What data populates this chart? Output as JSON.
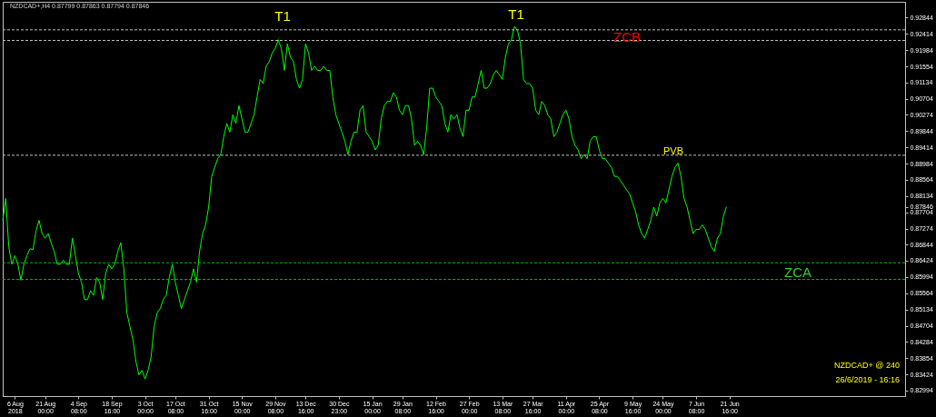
{
  "chart_data": {
    "type": "line",
    "title": "NZDCAD+,H4  0.87799 0.87863 0.87794 0.87846",
    "categories": [
      null,
      null,
      null,
      null,
      "6 Aug 2018",
      null,
      null,
      null,
      null,
      null,
      null,
      null,
      null,
      null,
      "21 Aug 00:00",
      null,
      null,
      null,
      null,
      null,
      null,
      null,
      null,
      null,
      null,
      "4 Sep 08:00",
      null,
      null,
      null,
      null,
      null,
      null,
      null,
      null,
      null,
      null,
      "18 Sep 16:00",
      null,
      null,
      null,
      null,
      null,
      null,
      null,
      null,
      null,
      null,
      "3 Oct 00:00",
      null,
      null,
      null,
      null,
      null,
      null,
      null,
      null,
      null,
      "17 Oct 08:00",
      null,
      null,
      null,
      null,
      null,
      null,
      null,
      null,
      null,
      null,
      "31 Oct 16:00",
      null,
      null,
      null,
      null,
      null,
      null,
      null,
      null,
      null,
      null,
      "15 Nov 00:00",
      null,
      null,
      null,
      null,
      null,
      null,
      null,
      null,
      null,
      null,
      "29 Nov 08:00",
      null,
      null,
      null,
      null,
      null,
      null,
      null,
      null,
      null,
      "13 Dec 16:00",
      null,
      null,
      null,
      null,
      null,
      null,
      null,
      null,
      null,
      null,
      "30 Dec 23:00",
      null,
      null,
      null,
      null,
      null,
      null,
      null,
      null,
      null,
      null,
      "15 Jan 00:00",
      null,
      null,
      null,
      null,
      null,
      null,
      null,
      null,
      null,
      "29 Jan 08:00",
      null,
      null,
      null,
      null,
      null,
      null,
      null,
      null,
      null,
      null,
      "12 Feb 16:00",
      null,
      null,
      null,
      null,
      null,
      null,
      null,
      null,
      null,
      null,
      "27 Feb 00:00",
      null,
      null,
      null,
      null,
      null,
      null,
      null,
      null,
      null,
      null,
      "13 Mar 08:00",
      null,
      null,
      null,
      null,
      null,
      null,
      null,
      null,
      null,
      "27 Mar 16:00",
      null,
      null,
      null,
      null,
      null,
      null,
      null,
      null,
      null,
      null,
      "11 Apr 00:00",
      null,
      null,
      null,
      null,
      null,
      null,
      null,
      null,
      null,
      null,
      "25 Apr 08:00",
      null,
      null,
      null,
      null,
      null,
      null,
      null,
      null,
      null,
      null,
      "9 May 16:00",
      null,
      null,
      null,
      null,
      null,
      null,
      null,
      null,
      null,
      "24 May 00:00",
      null,
      null,
      null,
      null,
      null,
      null,
      null,
      null,
      null,
      null,
      "7 Jun 08:00",
      null,
      null,
      null,
      null,
      null,
      null,
      null,
      null,
      null,
      null,
      "21 Jun 16:00",
      null,
      null,
      null,
      null,
      null,
      null,
      null,
      null,
      null,
      null,
      null,
      null,
      null,
      null,
      null,
      null,
      null,
      null,
      null,
      null,
      null,
      null,
      null,
      null,
      null,
      null,
      null,
      null,
      null,
      null,
      null,
      null,
      null,
      null,
      null,
      null,
      null,
      null,
      null,
      null,
      null,
      null,
      null,
      null,
      null,
      null,
      null,
      null,
      null,
      null,
      null,
      null,
      null,
      null,
      null,
      null,
      null,
      null
    ],
    "series": [
      {
        "color": "#00ff00",
        "values": [
          0.8749,
          0.8807,
          0.8679,
          0.8633,
          0.8656,
          0.8633,
          0.8591,
          0.8633,
          0.8656,
          0.8674,
          0.8672,
          0.8721,
          0.8749,
          0.8714,
          0.8702,
          0.8714,
          0.869,
          0.8667,
          0.8633,
          0.8633,
          0.8644,
          0.8633,
          0.8633,
          0.8702,
          0.8656,
          0.8609,
          0.8586,
          0.854,
          0.854,
          0.8563,
          0.8551,
          0.8598,
          0.8586,
          0.854,
          0.8609,
          0.8633,
          0.8621,
          0.8633,
          0.8667,
          0.869,
          0.8621,
          0.8505,
          0.8469,
          0.8434,
          0.8376,
          0.8341,
          0.8353,
          0.833,
          0.8353,
          0.8388,
          0.8469,
          0.8505,
          0.8516,
          0.854,
          0.8551,
          0.8598,
          0.8633,
          0.8586,
          0.8551,
          0.8516,
          0.854,
          0.8563,
          0.8586,
          0.8621,
          0.8586,
          0.8667,
          0.8714,
          0.8737,
          0.8784,
          0.8865,
          0.8889,
          0.8912,
          0.8923,
          0.897,
          0.9005,
          0.8982,
          0.9028,
          0.9005,
          0.9052,
          0.9017,
          0.8982,
          0.8982,
          0.9005,
          0.9028,
          0.9075,
          0.9121,
          0.911,
          0.9156,
          0.9168,
          0.9191,
          0.9203,
          0.9226,
          0.9203,
          0.9145,
          0.9215,
          0.918,
          0.9168,
          0.9121,
          0.9098,
          0.9121,
          0.9215,
          0.9191,
          0.9145,
          0.9156,
          0.9145,
          0.9145,
          0.9156,
          0.9145,
          0.9145,
          0.9075,
          0.9028,
          0.9005,
          0.8982,
          0.8958,
          0.8923,
          0.8958,
          0.8982,
          0.8982,
          0.904,
          0.9052,
          0.8982,
          0.897,
          0.8958,
          0.8935,
          0.8947,
          0.9017,
          0.9052,
          0.9063,
          0.9063,
          0.9086,
          0.9075,
          0.904,
          0.9028,
          0.9052,
          0.9052,
          0.9017,
          0.8947,
          0.8958,
          0.8947,
          0.8923,
          0.8993,
          0.9098,
          0.9098,
          0.9075,
          0.9063,
          0.9052,
          0.9005,
          0.8982,
          0.9028,
          0.9017,
          0.9028,
          0.8993,
          0.897,
          0.904,
          0.904,
          0.9075,
          0.9075,
          0.911,
          0.9145,
          0.9098,
          0.9098,
          0.911,
          0.9133,
          0.9145,
          0.9133,
          0.9121,
          0.918,
          0.9215,
          0.9226,
          0.9261,
          0.925,
          0.9215,
          0.9121,
          0.911,
          0.911,
          0.9098,
          0.904,
          0.9028,
          0.9063,
          0.9052,
          0.9028,
          0.9017,
          0.897,
          0.8982,
          0.9005,
          0.9028,
          0.904,
          0.9017,
          0.897,
          0.8947,
          0.8935,
          0.8912,
          0.8923,
          0.8912,
          0.8958,
          0.897,
          0.897,
          0.8935,
          0.8912,
          0.8912,
          0.89,
          0.8889,
          0.8865,
          0.8865,
          0.8854,
          0.8842,
          0.883,
          0.8819,
          0.8795,
          0.8772,
          0.8737,
          0.8714,
          0.8702,
          0.8725,
          0.8749,
          0.8784,
          0.876,
          0.8795,
          0.8807,
          0.8795,
          0.883,
          0.8865,
          0.8889,
          0.89,
          0.8865,
          0.8807,
          0.8784,
          0.8749,
          0.8714,
          0.8725,
          0.8725,
          0.8737,
          0.8725,
          0.8702,
          0.8679,
          0.8667,
          0.8702,
          0.8714,
          0.876,
          0.8785,
          null,
          null,
          null,
          null,
          null,
          null,
          null,
          null,
          null,
          null,
          null,
          null,
          null,
          null,
          null,
          null,
          null,
          null,
          null,
          null,
          null,
          null,
          null,
          null,
          null,
          null,
          null,
          null,
          null,
          null,
          null,
          null,
          null,
          null,
          null,
          null,
          null,
          null,
          null,
          null,
          null,
          null,
          null,
          null,
          null,
          null,
          null,
          null,
          null,
          null,
          null,
          null,
          null,
          null,
          null,
          null,
          null,
          null,
          null
        ]
      }
    ],
    "ylim": [
      0.8285,
      0.9326
    ],
    "yticks": [
      0.92844,
      0.92414,
      0.91984,
      0.91554,
      0.91134,
      0.90704,
      0.90274,
      0.89844,
      0.89414,
      0.88984,
      0.88564,
      0.88134,
      0.87846,
      0.87704,
      0.87274,
      0.86844,
      0.86424,
      0.85994,
      0.85564,
      0.85134,
      0.84704,
      0.84284,
      0.83854,
      0.83424,
      0.82994
    ],
    "ref_lines": [
      {
        "axis": "y",
        "value": 0.9252,
        "color": "#c0c0c0",
        "line_style": "dashed"
      },
      {
        "axis": "y",
        "value": 0.9224,
        "color": "#c0c0c0",
        "line_style": "dashed"
      },
      {
        "axis": "y",
        "value": 0.8921,
        "color": "#c0c0c0",
        "line_style": "dashed"
      },
      {
        "axis": "y",
        "value": 0.8637,
        "color": "#00c000",
        "line_style": "dashed"
      },
      {
        "axis": "y",
        "value": 0.8593,
        "color": "#00c000",
        "line_style": "dashed"
      }
    ],
    "annotations": [
      "T1",
      "T1",
      "ZCB",
      "PVB",
      "ZCA",
      "NZDCAD+ @ 240",
      "26/6/2019 - 16:16"
    ]
  }
}
